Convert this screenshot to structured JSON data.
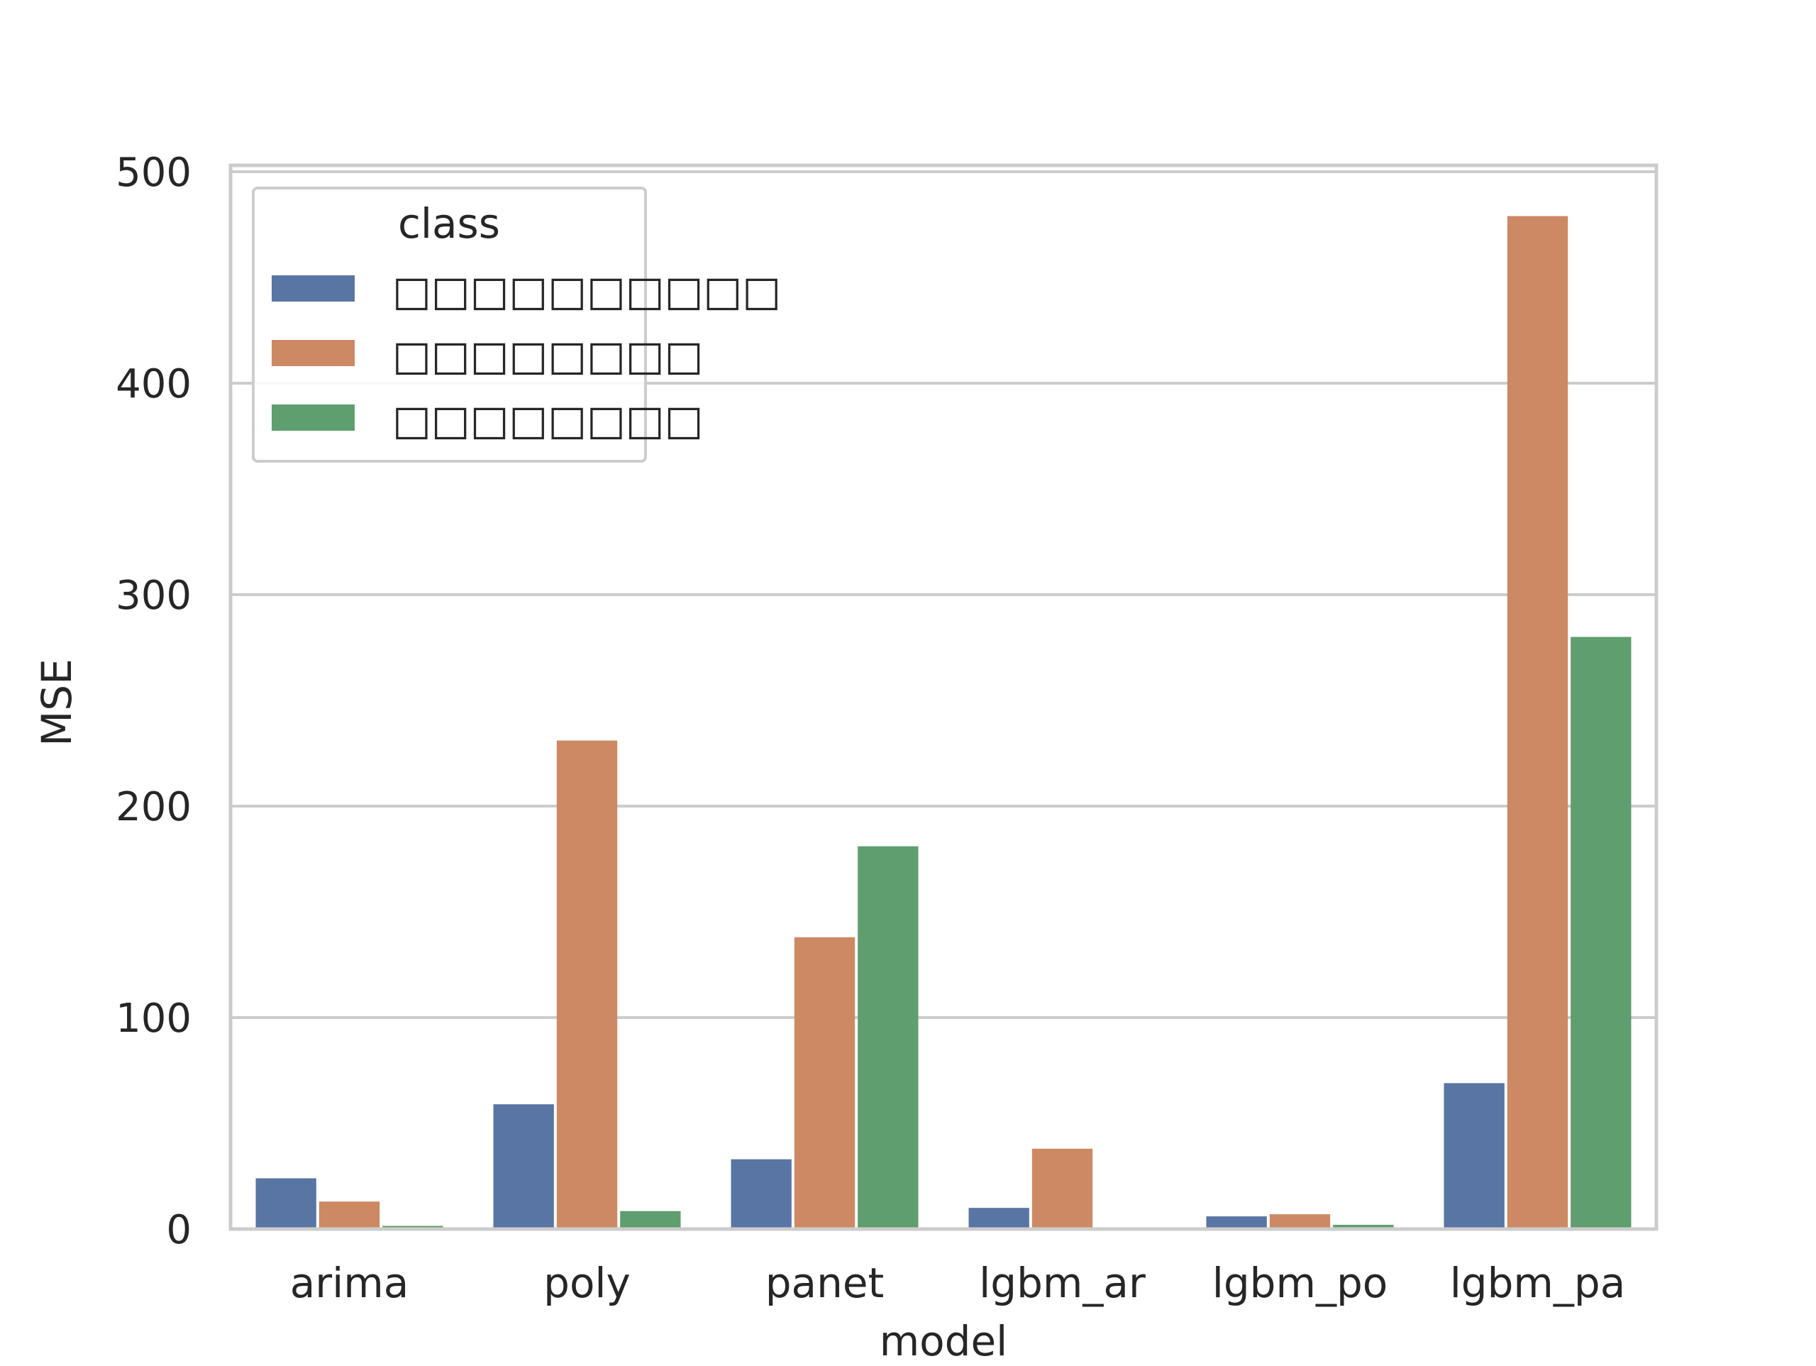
{
  "chart_data": {
    "type": "bar",
    "xlabel": "model",
    "ylabel": "MSE",
    "ylim": [
      0,
      503
    ],
    "yticks": [
      0,
      100,
      200,
      300,
      400,
      500
    ],
    "grid": true,
    "legend": {
      "title": "class",
      "placement": "top-left"
    },
    "categories": [
      "arima",
      "poly",
      "panet",
      "lgbm_ar",
      "lgbm_po",
      "lgbm_pa"
    ],
    "series": [
      {
        "name": "□□□□□□□□□□",
        "color": "#5975a4",
        "values": [
          24,
          59,
          33,
          10,
          6,
          69
        ]
      },
      {
        "name": "□□□□□□□□",
        "color": "#cc8963",
        "values": [
          13,
          231,
          138,
          38,
          7,
          479
        ]
      },
      {
        "name": "□□□□□□□□",
        "color": "#5f9e6e",
        "values": [
          1.5,
          8.5,
          181,
          0,
          2,
          280
        ]
      }
    ]
  }
}
